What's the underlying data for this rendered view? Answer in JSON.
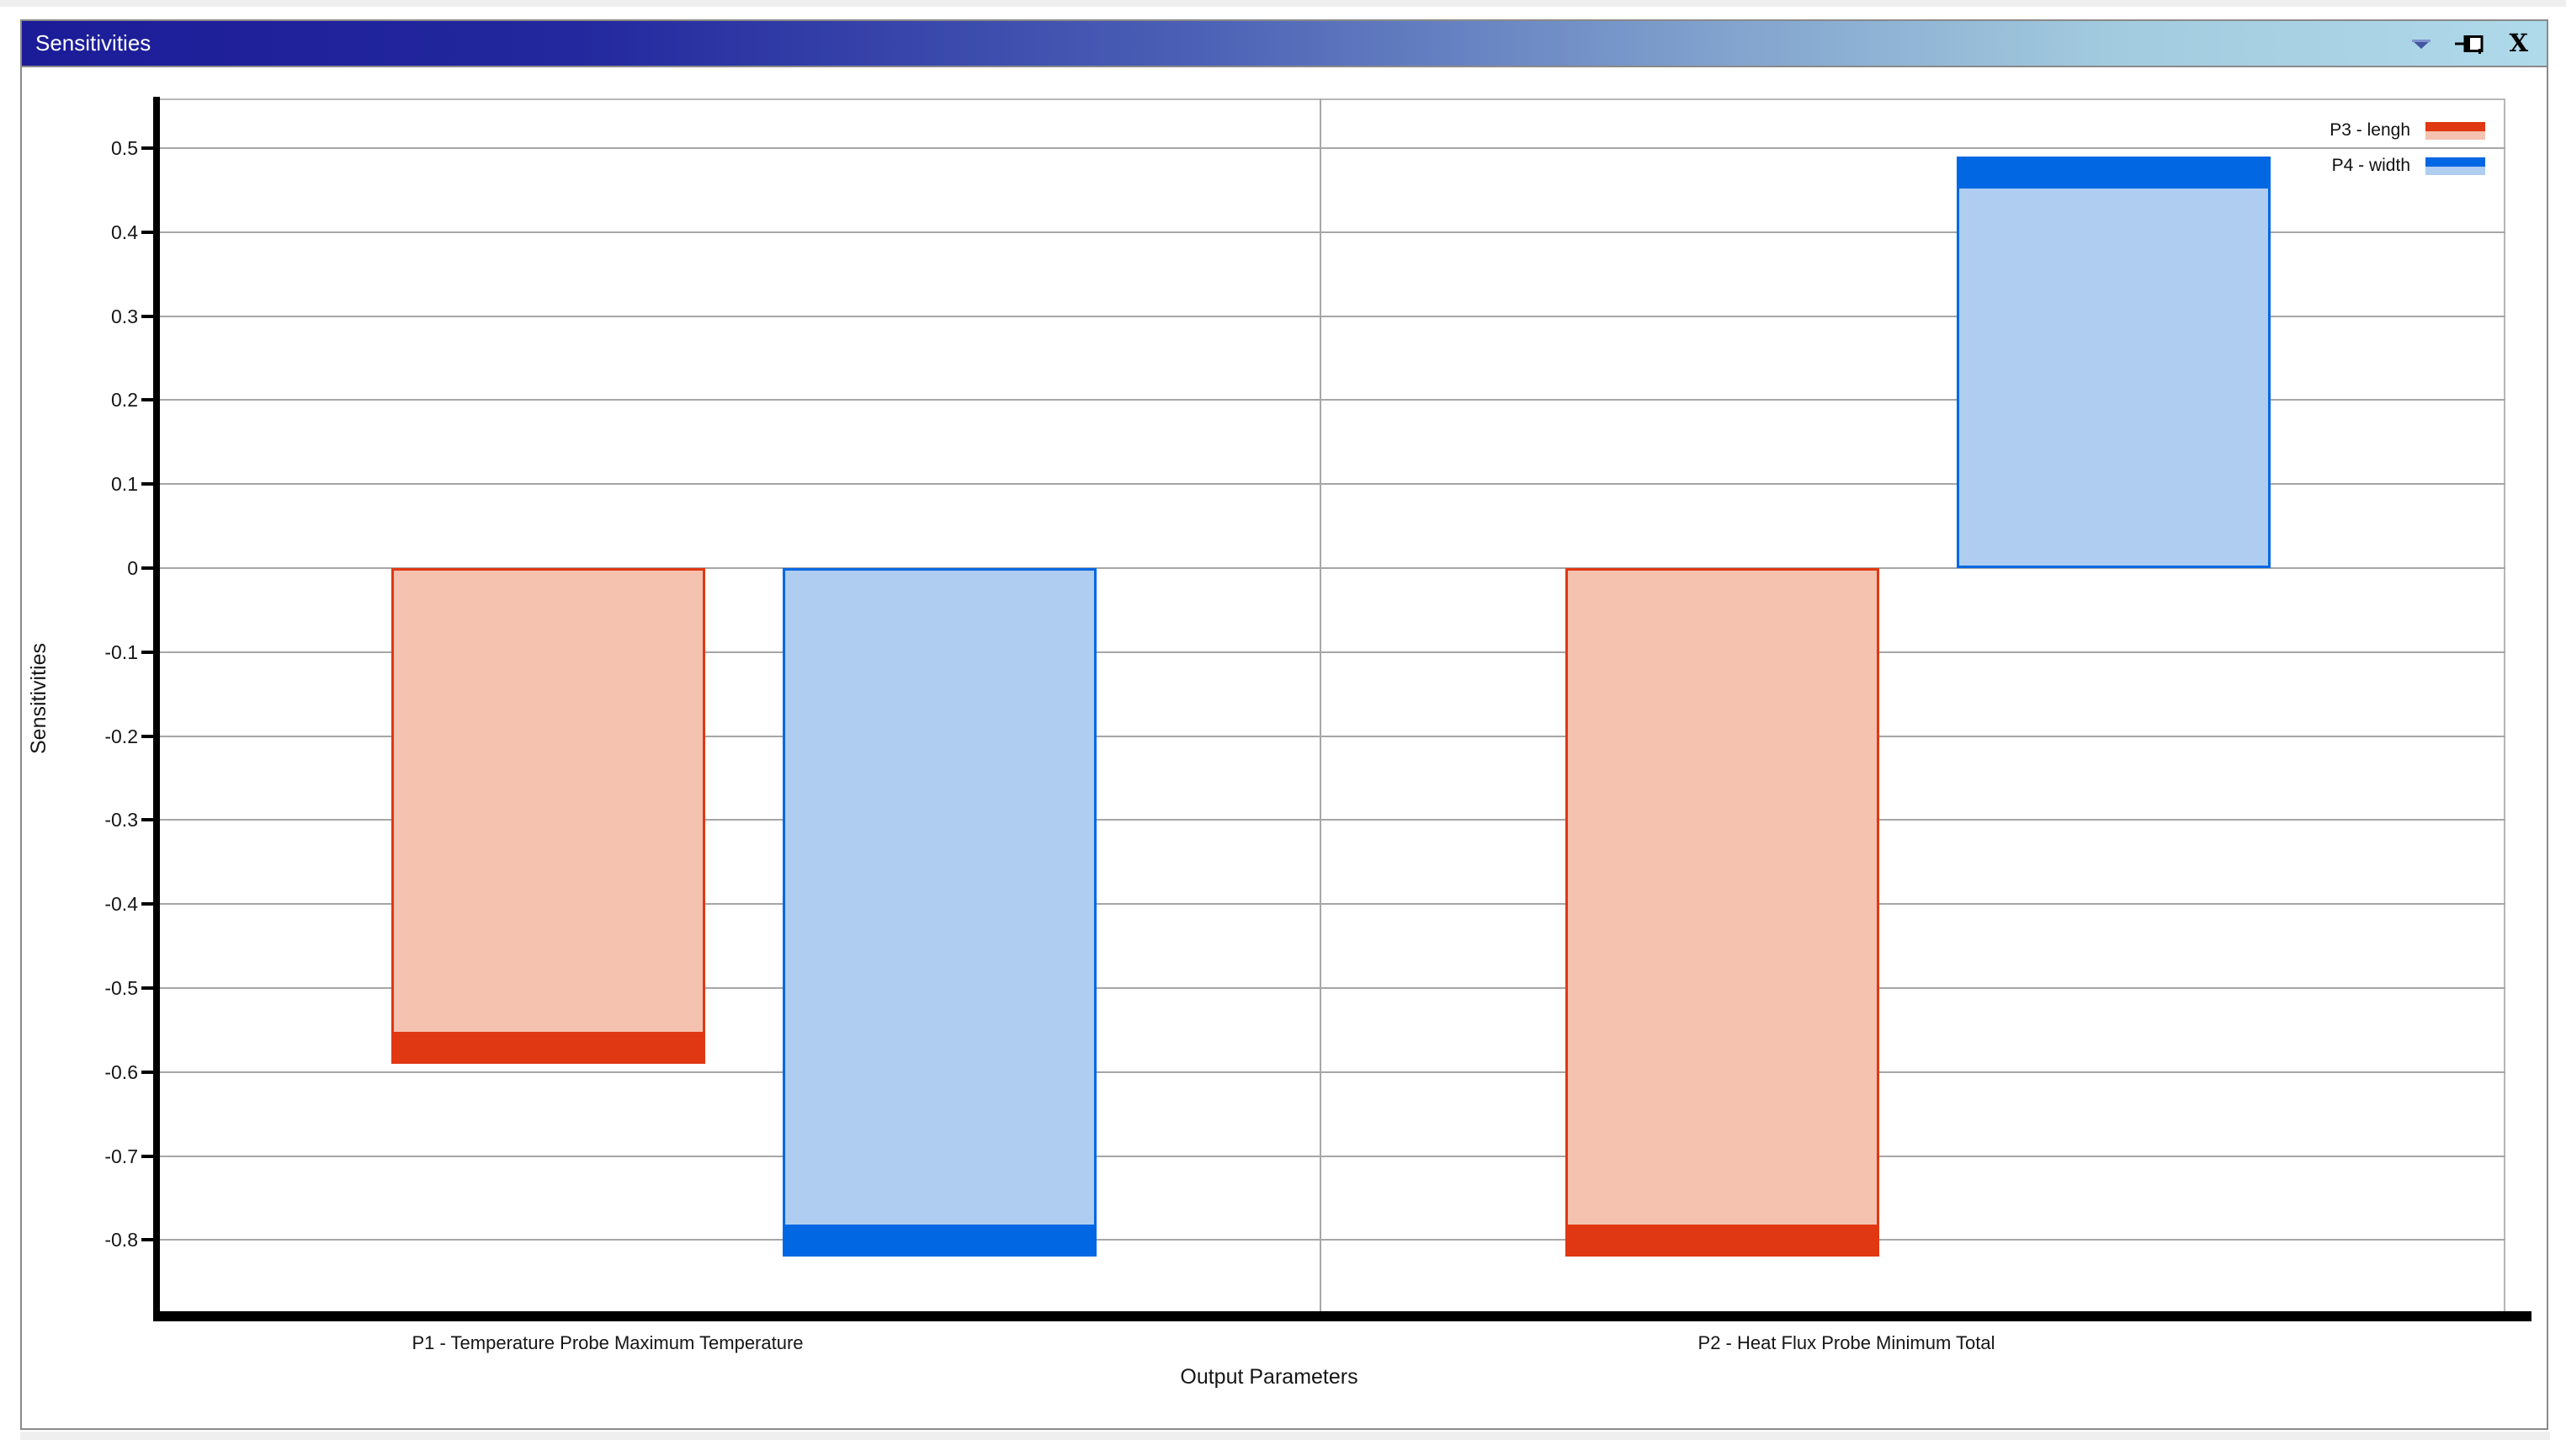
{
  "window": {
    "title": "Sensitivities",
    "icons": {
      "dropdown": "pane-menu-dropdown",
      "pin": "auto-hide-pin",
      "close": "close"
    }
  },
  "chart_data": {
    "type": "bar",
    "title": "",
    "xlabel": "Output Parameters",
    "ylabel": "Sensitivities",
    "categories": [
      "P1 - Temperature Probe Maximum Temperature",
      "P2 - Heat Flux Probe Minimum Total"
    ],
    "series": [
      {
        "name": "P3 - lengh",
        "color": "#E03812",
        "fill": "#F4C2AF",
        "values": [
          -0.59,
          -0.82
        ]
      },
      {
        "name": "P4 - width",
        "color": "#0167E2",
        "fill": "#AFCDF1",
        "values": [
          -0.82,
          0.49
        ]
      }
    ],
    "y_ticks": [
      0.5,
      0.4,
      0.3,
      0.2,
      0.1,
      0,
      -0.1,
      -0.2,
      -0.3,
      -0.4,
      -0.5,
      -0.6,
      -0.7,
      -0.8
    ],
    "ylim": [
      -0.89,
      0.56
    ],
    "grid": true,
    "legend_position": "top-right",
    "bar_style": "light translucent fill with solid cap segment of ~0.04 units at the value end",
    "solid_cap_units": 0.04
  },
  "colors": {
    "titlebar_start": "#1C1C98",
    "titlebar_end": "#AFDAEA",
    "grid": "#A6A6A6",
    "axis": "#000000",
    "window_border": "#8A8A8A",
    "plot_border": "#B6B6B6"
  }
}
